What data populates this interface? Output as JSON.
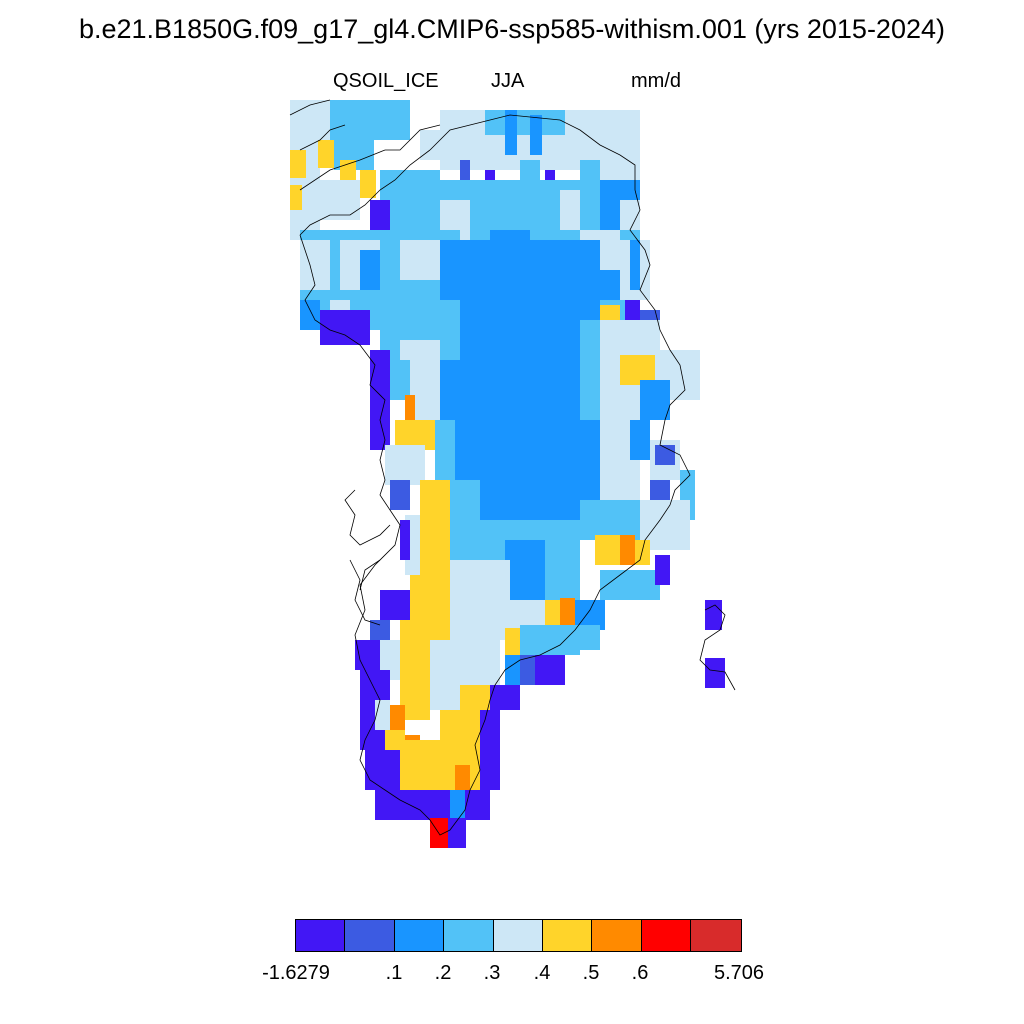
{
  "header": {
    "title": "b.e21.B1850G.f09_g17_gl4.CMIP6-ssp585-withism.001 (yrs 2015-2024)",
    "variable": "QSOIL_ICE",
    "season": "JJA",
    "units": "mm/d"
  },
  "colorbar": {
    "colors": [
      "#4217f5",
      "#3c5be2",
      "#1995ff",
      "#52c2f7",
      "#cde7f6",
      "#ffd42a",
      "#ff8a00",
      "#ff0000",
      "#d82b2b"
    ],
    "labels": [
      "-1.6279",
      ".1",
      ".2",
      ".3",
      ".4",
      ".5",
      ".6",
      "5.706"
    ]
  },
  "map": {
    "region": "Greenland",
    "legend_classes": [
      "dark-blue",
      "royal-blue",
      "blue",
      "light-blue",
      "pale-blue",
      "yellow",
      "orange",
      "red",
      "dark-red"
    ]
  }
}
